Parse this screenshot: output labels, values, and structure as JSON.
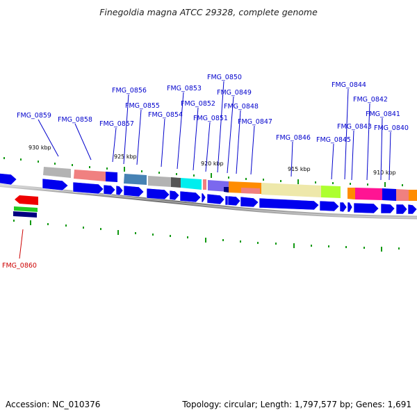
{
  "title": "Finegoldia magna ATCC 29328, complete genome",
  "footer": {
    "accession": "Accession: NC_010376",
    "stats": "Topology: circular; Length: 1,797,577 bp; Genes: 1,691"
  },
  "scale_labels": [
    "930 kbp",
    "925 kbp",
    "920 kbp",
    "915 kbp",
    "910 kbp"
  ],
  "gene_labels": [
    "FMG_0859",
    "FMG_0858",
    "FMG_0857",
    "FMG_0856",
    "FMG_0855",
    "FMG_0854",
    "FMG_0853",
    "FMG_0852",
    "FMG_0851",
    "FMG_0850",
    "FMG_0849",
    "FMG_0848",
    "FMG_0847",
    "FMG_0846",
    "FMG_0845",
    "FMG_0844",
    "FMG_0843",
    "FMG_0842",
    "FMG_0841",
    "FMG_0840"
  ],
  "highlight_label": "FMG_0860",
  "colors": {
    "gene": "#0000ee",
    "label": "#0000cc",
    "highlight": "#cc0000",
    "backbone": "#888888",
    "tick": "#119911"
  }
}
